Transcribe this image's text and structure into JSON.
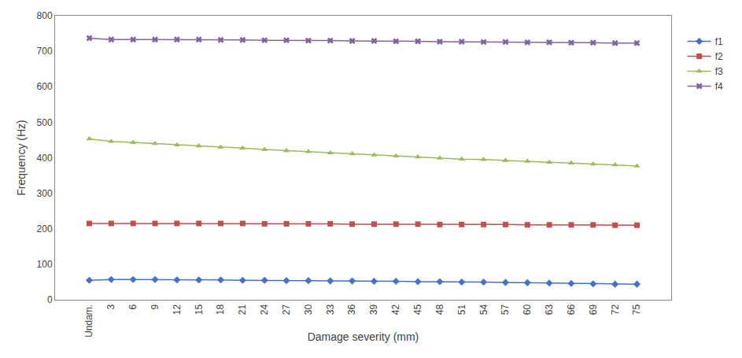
{
  "chart_data": {
    "type": "line",
    "xlabel": "Damage severity (mm)",
    "ylabel": "Frequency (Hz)",
    "categories": [
      "Undam.",
      "3",
      "6",
      "9",
      "12",
      "15",
      "18",
      "21",
      "24",
      "27",
      "30",
      "33",
      "36",
      "39",
      "42",
      "45",
      "48",
      "51",
      "54",
      "57",
      "60",
      "63",
      "66",
      "69",
      "72",
      "75"
    ],
    "series": [
      {
        "name": "f1",
        "color": "#4472C4",
        "marker": "diamond",
        "values": [
          55,
          57,
          57,
          57,
          56,
          56,
          56,
          55,
          55,
          54,
          54,
          53,
          53,
          52,
          52,
          51,
          51,
          50,
          50,
          49,
          48,
          47,
          46,
          45,
          44,
          44
        ]
      },
      {
        "name": "f2",
        "color": "#C0504D",
        "marker": "square",
        "values": [
          215,
          215,
          215,
          215,
          215,
          215,
          215,
          215,
          214,
          214,
          214,
          214,
          213,
          213,
          213,
          213,
          212,
          212,
          212,
          212,
          211,
          211,
          211,
          211,
          210,
          210
        ]
      },
      {
        "name": "f3",
        "color": "#9BBB59",
        "marker": "triangle-up",
        "values": [
          453,
          446,
          443,
          440,
          436,
          433,
          430,
          427,
          423,
          420,
          417,
          414,
          411,
          408,
          405,
          402,
          399,
          396,
          395,
          392,
          390,
          387,
          385,
          382,
          380,
          377
        ]
      },
      {
        "name": "f4",
        "color": "#8064A2",
        "marker": "x",
        "values": [
          737,
          733,
          733,
          733,
          733,
          733,
          732,
          732,
          731,
          731,
          730,
          730,
          729,
          729,
          728,
          728,
          727,
          727,
          726,
          726,
          725,
          725,
          724,
          724,
          723,
          723
        ]
      }
    ],
    "ylim": [
      0,
      800
    ],
    "yticks": [
      0,
      100,
      200,
      300,
      400,
      500,
      600,
      700,
      800
    ],
    "grid": false,
    "legend": "right"
  }
}
